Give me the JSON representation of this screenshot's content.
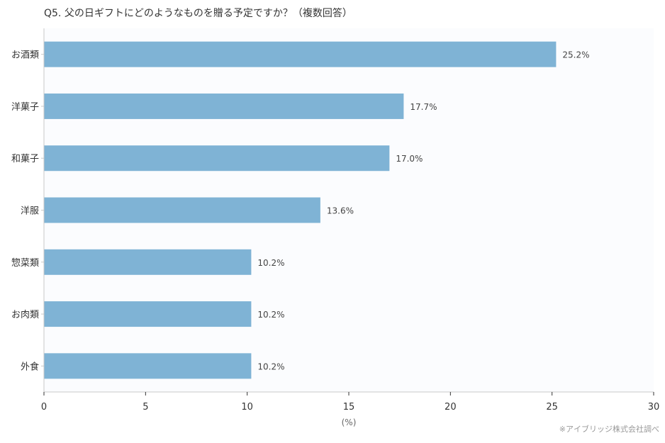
{
  "title": "Q5. 父の日ギフトにどのようなものを贈る予定ですか？（複数回答）",
  "source": "※アイブリッジ株式会社調べ",
  "chart_data": {
    "type": "bar",
    "orientation": "horizontal",
    "title": "Q5. 父の日ギフトにどのようなものを贈る予定ですか？（複数回答）",
    "xlabel": "(%)",
    "ylabel": "",
    "categories": [
      "お酒類",
      "洋菓子",
      "和菓子",
      "洋服",
      "惣菜類",
      "お肉類",
      "外食"
    ],
    "values": [
      25.2,
      17.7,
      17.0,
      13.6,
      10.2,
      10.2,
      10.2
    ],
    "value_labels": [
      "25.2%",
      "17.7%",
      "17.0%",
      "13.6%",
      "10.2%",
      "10.2%",
      "10.2%"
    ],
    "xlim": [
      0,
      30
    ],
    "xticks": [
      0,
      5,
      10,
      15,
      20,
      25,
      30
    ],
    "grid": false,
    "bar_color": "#7fb3d5",
    "plot_background": "#fbfcfe"
  }
}
